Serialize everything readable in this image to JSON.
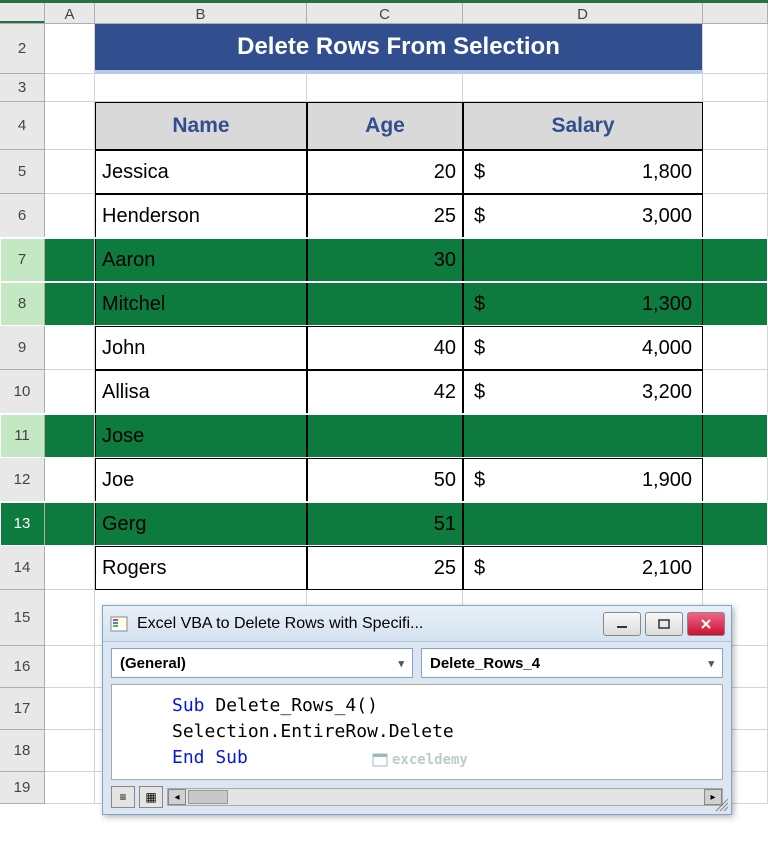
{
  "columns": [
    "A",
    "B",
    "C",
    "D"
  ],
  "rows": [
    "2",
    "3",
    "4",
    "5",
    "6",
    "7",
    "8",
    "9",
    "10",
    "11",
    "12",
    "13",
    "14",
    "15",
    "16",
    "17",
    "18",
    "19"
  ],
  "title": "Delete Rows From Selection",
  "headers": {
    "name": "Name",
    "age": "Age",
    "salary": "Salary"
  },
  "data": [
    {
      "row": "5",
      "name": "Jessica",
      "age": "20",
      "cur": "$",
      "salary": "1,800",
      "highlighted": false
    },
    {
      "row": "6",
      "name": "Henderson",
      "age": "25",
      "cur": "$",
      "salary": "3,000",
      "highlighted": false
    },
    {
      "row": "7",
      "name": "Aaron",
      "age": "30",
      "cur": "",
      "salary": "",
      "highlighted": true
    },
    {
      "row": "8",
      "name": "Mitchel",
      "age": "",
      "cur": "$",
      "salary": "1,300",
      "highlighted": true
    },
    {
      "row": "9",
      "name": "John",
      "age": "40",
      "cur": "$",
      "salary": "4,000",
      "highlighted": false
    },
    {
      "row": "10",
      "name": "Allisa",
      "age": "42",
      "cur": "$",
      "salary": "3,200",
      "highlighted": false
    },
    {
      "row": "11",
      "name": "Jose",
      "age": "",
      "cur": "",
      "salary": "",
      "highlighted": true
    },
    {
      "row": "12",
      "name": "Joe",
      "age": "50",
      "cur": "$",
      "salary": "1,900",
      "highlighted": false
    },
    {
      "row": "13",
      "name": "Gerg",
      "age": "51",
      "cur": "",
      "salary": "",
      "highlighted": true,
      "active": true
    },
    {
      "row": "14",
      "name": "Rogers",
      "age": "25",
      "cur": "$",
      "salary": "2,100",
      "highlighted": false
    }
  ],
  "vba": {
    "title": "Excel VBA to Delete Rows with Specifi...",
    "dropdown1": "(General)",
    "dropdown2": "Delete_Rows_4",
    "code": {
      "l1a": "Sub",
      "l1b": " Delete_Rows_4()",
      "l2": "Selection.EntireRow.Delete",
      "l3": "End Sub"
    }
  },
  "watermark": "exceldemy",
  "colors": {
    "title_bg": "#314f8e",
    "header_bg": "#d9d9d9",
    "highlight": "#0e7b3e",
    "excel_green": "#217346"
  }
}
